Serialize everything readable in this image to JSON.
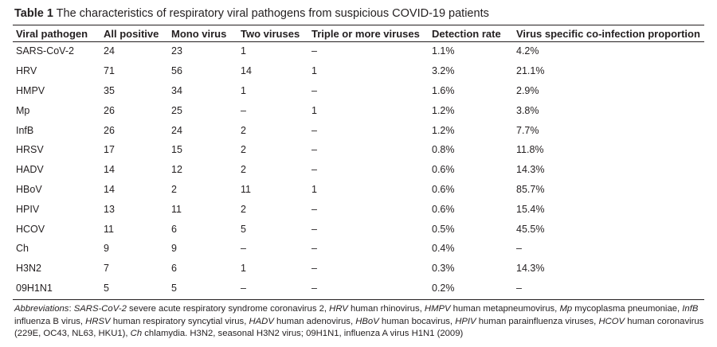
{
  "caption": {
    "label": "Table 1",
    "text": "The characteristics of respiratory viral pathogens from suspicious COVID-19 patients"
  },
  "columns": [
    "Viral pathogen",
    "All positive",
    "Mono virus",
    "Two viruses",
    "Triple or more viruses",
    "Detection rate",
    "Virus specific co-infection proportion"
  ],
  "rows": [
    [
      "SARS-CoV-2",
      "24",
      "23",
      "1",
      "–",
      "1.1%",
      "4.2%"
    ],
    [
      "HRV",
      "71",
      "56",
      "14",
      "1",
      "3.2%",
      "21.1%"
    ],
    [
      "HMPV",
      "35",
      "34",
      "1",
      "–",
      "1.6%",
      "2.9%"
    ],
    [
      "Mp",
      "26",
      "25",
      "–",
      "1",
      "1.2%",
      "3.8%"
    ],
    [
      "InfB",
      "26",
      "24",
      "2",
      "–",
      "1.2%",
      "7.7%"
    ],
    [
      "HRSV",
      "17",
      "15",
      "2",
      "–",
      "0.8%",
      "11.8%"
    ],
    [
      "HADV",
      "14",
      "12",
      "2",
      "–",
      "0.6%",
      "14.3%"
    ],
    [
      "HBoV",
      "14",
      "2",
      "11",
      "1",
      "0.6%",
      "85.7%"
    ],
    [
      "HPIV",
      "13",
      "11",
      "2",
      "–",
      "0.6%",
      "15.4%"
    ],
    [
      "HCOV",
      "11",
      "6",
      "5",
      "–",
      "0.5%",
      "45.5%"
    ],
    [
      "Ch",
      "9",
      "9",
      "–",
      "–",
      "0.4%",
      "–"
    ],
    [
      "H3N2",
      "7",
      "6",
      "1",
      "–",
      "0.3%",
      "14.3%"
    ],
    [
      "09H1N1",
      "5",
      "5",
      "–",
      "–",
      "0.2%",
      "–"
    ]
  ],
  "footnote": {
    "lead": "Abbreviations",
    "entries": [
      {
        "abbr": "SARS-CoV-2",
        "text": " severe acute respiratory syndrome coronavirus 2, "
      },
      {
        "abbr": "HRV",
        "text": " human rhinovirus, "
      },
      {
        "abbr": "HMPV",
        "text": " human metapneumovirus, "
      },
      {
        "abbr": "Mp",
        "text": " mycoplasma pneumoniae, "
      },
      {
        "abbr": "InfB",
        "text": " influenza B virus, "
      },
      {
        "abbr": "HRSV",
        "text": " human respiratory syncytial virus, "
      },
      {
        "abbr": "HADV",
        "text": " human adenovirus, "
      },
      {
        "abbr": "HBoV",
        "text": " human bocavirus, "
      },
      {
        "abbr": "HPIV",
        "text": " human parainfluenza viruses, "
      },
      {
        "abbr": "HCOV",
        "text": " human coronavirus (229E, OC43, NL63, HKU1), "
      },
      {
        "abbr": "Ch",
        "text": " chlamydia. H3N2, seasonal H3N2 virus; 09H1N1, influenza A virus H1N1 (2009)"
      }
    ]
  }
}
